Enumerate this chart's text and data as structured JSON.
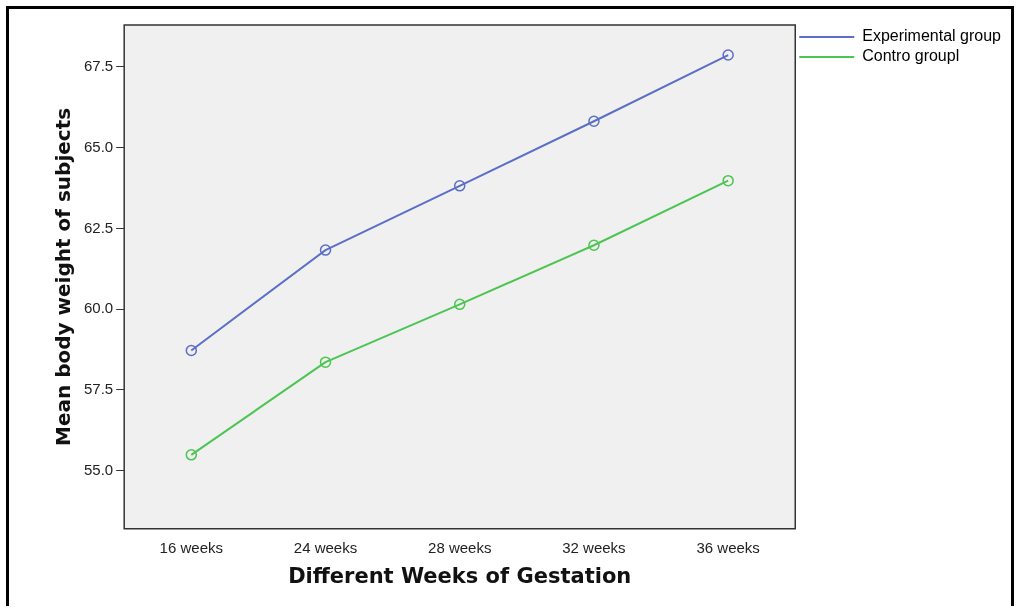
{
  "chart_data": {
    "type": "line",
    "xlabel": "Different Weeks of Gestation",
    "ylabel": "Mean body weight of subjects",
    "categories": [
      "16 weeks",
      "24 weeks",
      "28 weeks",
      "32 weeks",
      "36 weeks"
    ],
    "series": [
      {
        "name": "Experimental group",
        "color": "#5b6fc6",
        "values": [
          58.72,
          61.83,
          63.82,
          65.82,
          67.87
        ]
      },
      {
        "name": "Contro groupl",
        "color": "#4cc552",
        "values": [
          55.49,
          58.36,
          60.15,
          61.98,
          63.98
        ]
      }
    ],
    "ylim": [
      53.2,
      68.8
    ],
    "yticks": [
      {
        "value": 55,
        "label": "55.0"
      },
      {
        "value": 57.5,
        "label": "57.5"
      },
      {
        "value": 60,
        "label": "60.0"
      },
      {
        "value": 62.5,
        "label": "62.5"
      },
      {
        "value": 65,
        "label": "65.0"
      },
      {
        "value": 67.5,
        "label": "67.5"
      }
    ],
    "grid": false,
    "legend": "top right",
    "marker": "circle",
    "line_style": "solid"
  }
}
